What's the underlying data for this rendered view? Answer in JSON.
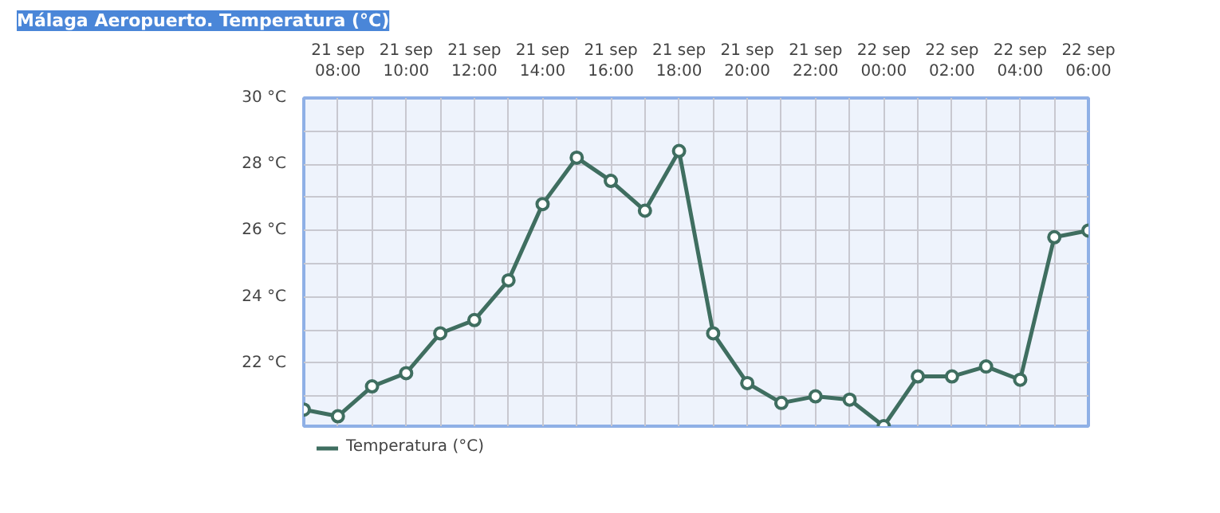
{
  "chart_data": {
    "type": "line",
    "title": "Málaga Aeropuerto. Temperatura (°C)",
    "categories": [
      null,
      "21 sep\n08:00",
      null,
      "21 sep\n10:00",
      null,
      "21 sep\n12:00",
      null,
      "21 sep\n14:00",
      null,
      "21 sep\n16:00",
      null,
      "21 sep\n18:00",
      null,
      "21 sep\n20:00",
      null,
      "21 sep\n22:00",
      null,
      "22 sep\n00:00",
      null,
      "22 sep\n02:00",
      null,
      "22 sep\n04:00",
      null,
      "22 sep\n06:00"
    ],
    "ylim": [
      20.1,
      30
    ],
    "yticks": [
      {
        "value": 21,
        "label": null
      },
      {
        "value": 22,
        "label": "22 °C"
      },
      {
        "value": 23,
        "label": null
      },
      {
        "value": 24,
        "label": "24 °C"
      },
      {
        "value": 25,
        "label": null
      },
      {
        "value": 26,
        "label": "26 °C"
      },
      {
        "value": 27,
        "label": null
      },
      {
        "value": 28,
        "label": "28 °C"
      },
      {
        "value": 29,
        "label": null
      },
      {
        "value": 30,
        "label": "30 °C"
      }
    ],
    "series": [
      {
        "name": "Temperatura (°C)",
        "color": "#3f6e60",
        "values": [
          20.6,
          20.4,
          21.3,
          21.7,
          22.9,
          23.3,
          24.5,
          26.8,
          28.2,
          27.5,
          26.6,
          28.4,
          22.9,
          21.4,
          20.8,
          21.0,
          20.9,
          20.1,
          21.6,
          21.6,
          21.9,
          21.5,
          25.8,
          26.0
        ]
      }
    ],
    "grid": true,
    "legend": "bottom left",
    "marker": "circle",
    "line_style": "solid"
  }
}
